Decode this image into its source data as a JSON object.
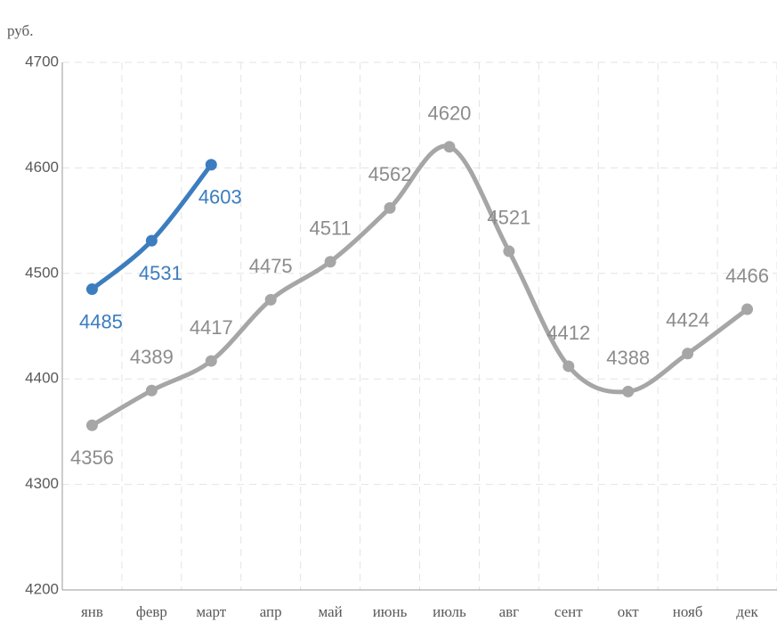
{
  "chart_data": {
    "type": "line",
    "y_label": "руб.",
    "categories": [
      "янв",
      "февр",
      "март",
      "апр",
      "май",
      "июнь",
      "июль",
      "авг",
      "сент",
      "окт",
      "нояб",
      "дек"
    ],
    "series": [
      {
        "color": "#a6a6a6",
        "values": [
          4356,
          4389,
          4417,
          4475,
          4511,
          4562,
          4620,
          4521,
          4412,
          4388,
          4424,
          4466
        ]
      },
      {
        "color": "#3b7dbf",
        "values": [
          4485,
          4531,
          4603,
          null,
          null,
          null,
          null,
          null,
          null,
          null,
          null,
          null
        ]
      }
    ],
    "ylim": [
      4200,
      4700
    ],
    "yticks": [
      4200,
      4300,
      4400,
      4500,
      4600,
      4700
    ],
    "grid": true
  }
}
